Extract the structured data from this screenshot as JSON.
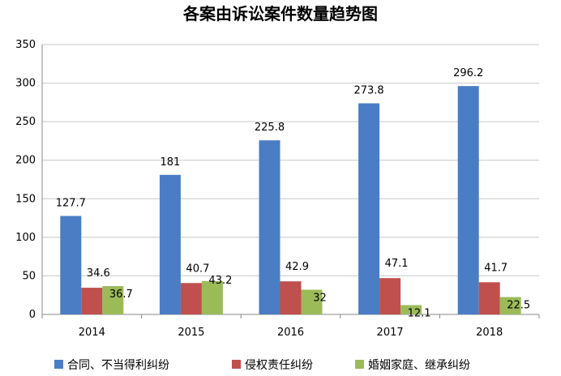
{
  "chart_data": {
    "type": "bar",
    "title": "各案由诉讼案件数量趋势图",
    "categories": [
      "2014",
      "2015",
      "2016",
      "2017",
      "2018"
    ],
    "series": [
      {
        "name": "合同、不当得利纠纷",
        "color": "#4a7dc4",
        "values": [
          127.7,
          181,
          225.8,
          273.8,
          296.2
        ],
        "labels": [
          "127.7",
          "181",
          "225.8",
          "273.8",
          "296.2"
        ]
      },
      {
        "name": "侵权责任纠纷",
        "color": "#c0504d",
        "values": [
          34.6,
          40.7,
          42.9,
          47.1,
          41.7
        ],
        "labels": [
          "34.6",
          "40.7",
          "42.9",
          "47.1",
          "41.7"
        ]
      },
      {
        "name": "婚姻家庭、继承纠纷",
        "color": "#9bbb59",
        "values": [
          36.7,
          43.2,
          32,
          12.1,
          22.5
        ],
        "labels": [
          "36.7",
          "43.2",
          "32",
          "12.1",
          "22.5"
        ]
      }
    ],
    "ylim": [
      0,
      350
    ],
    "yticks": [
      "0",
      "50",
      "100",
      "150",
      "200",
      "250",
      "300",
      "350"
    ],
    "grid": true,
    "legend_position": "bottom"
  }
}
